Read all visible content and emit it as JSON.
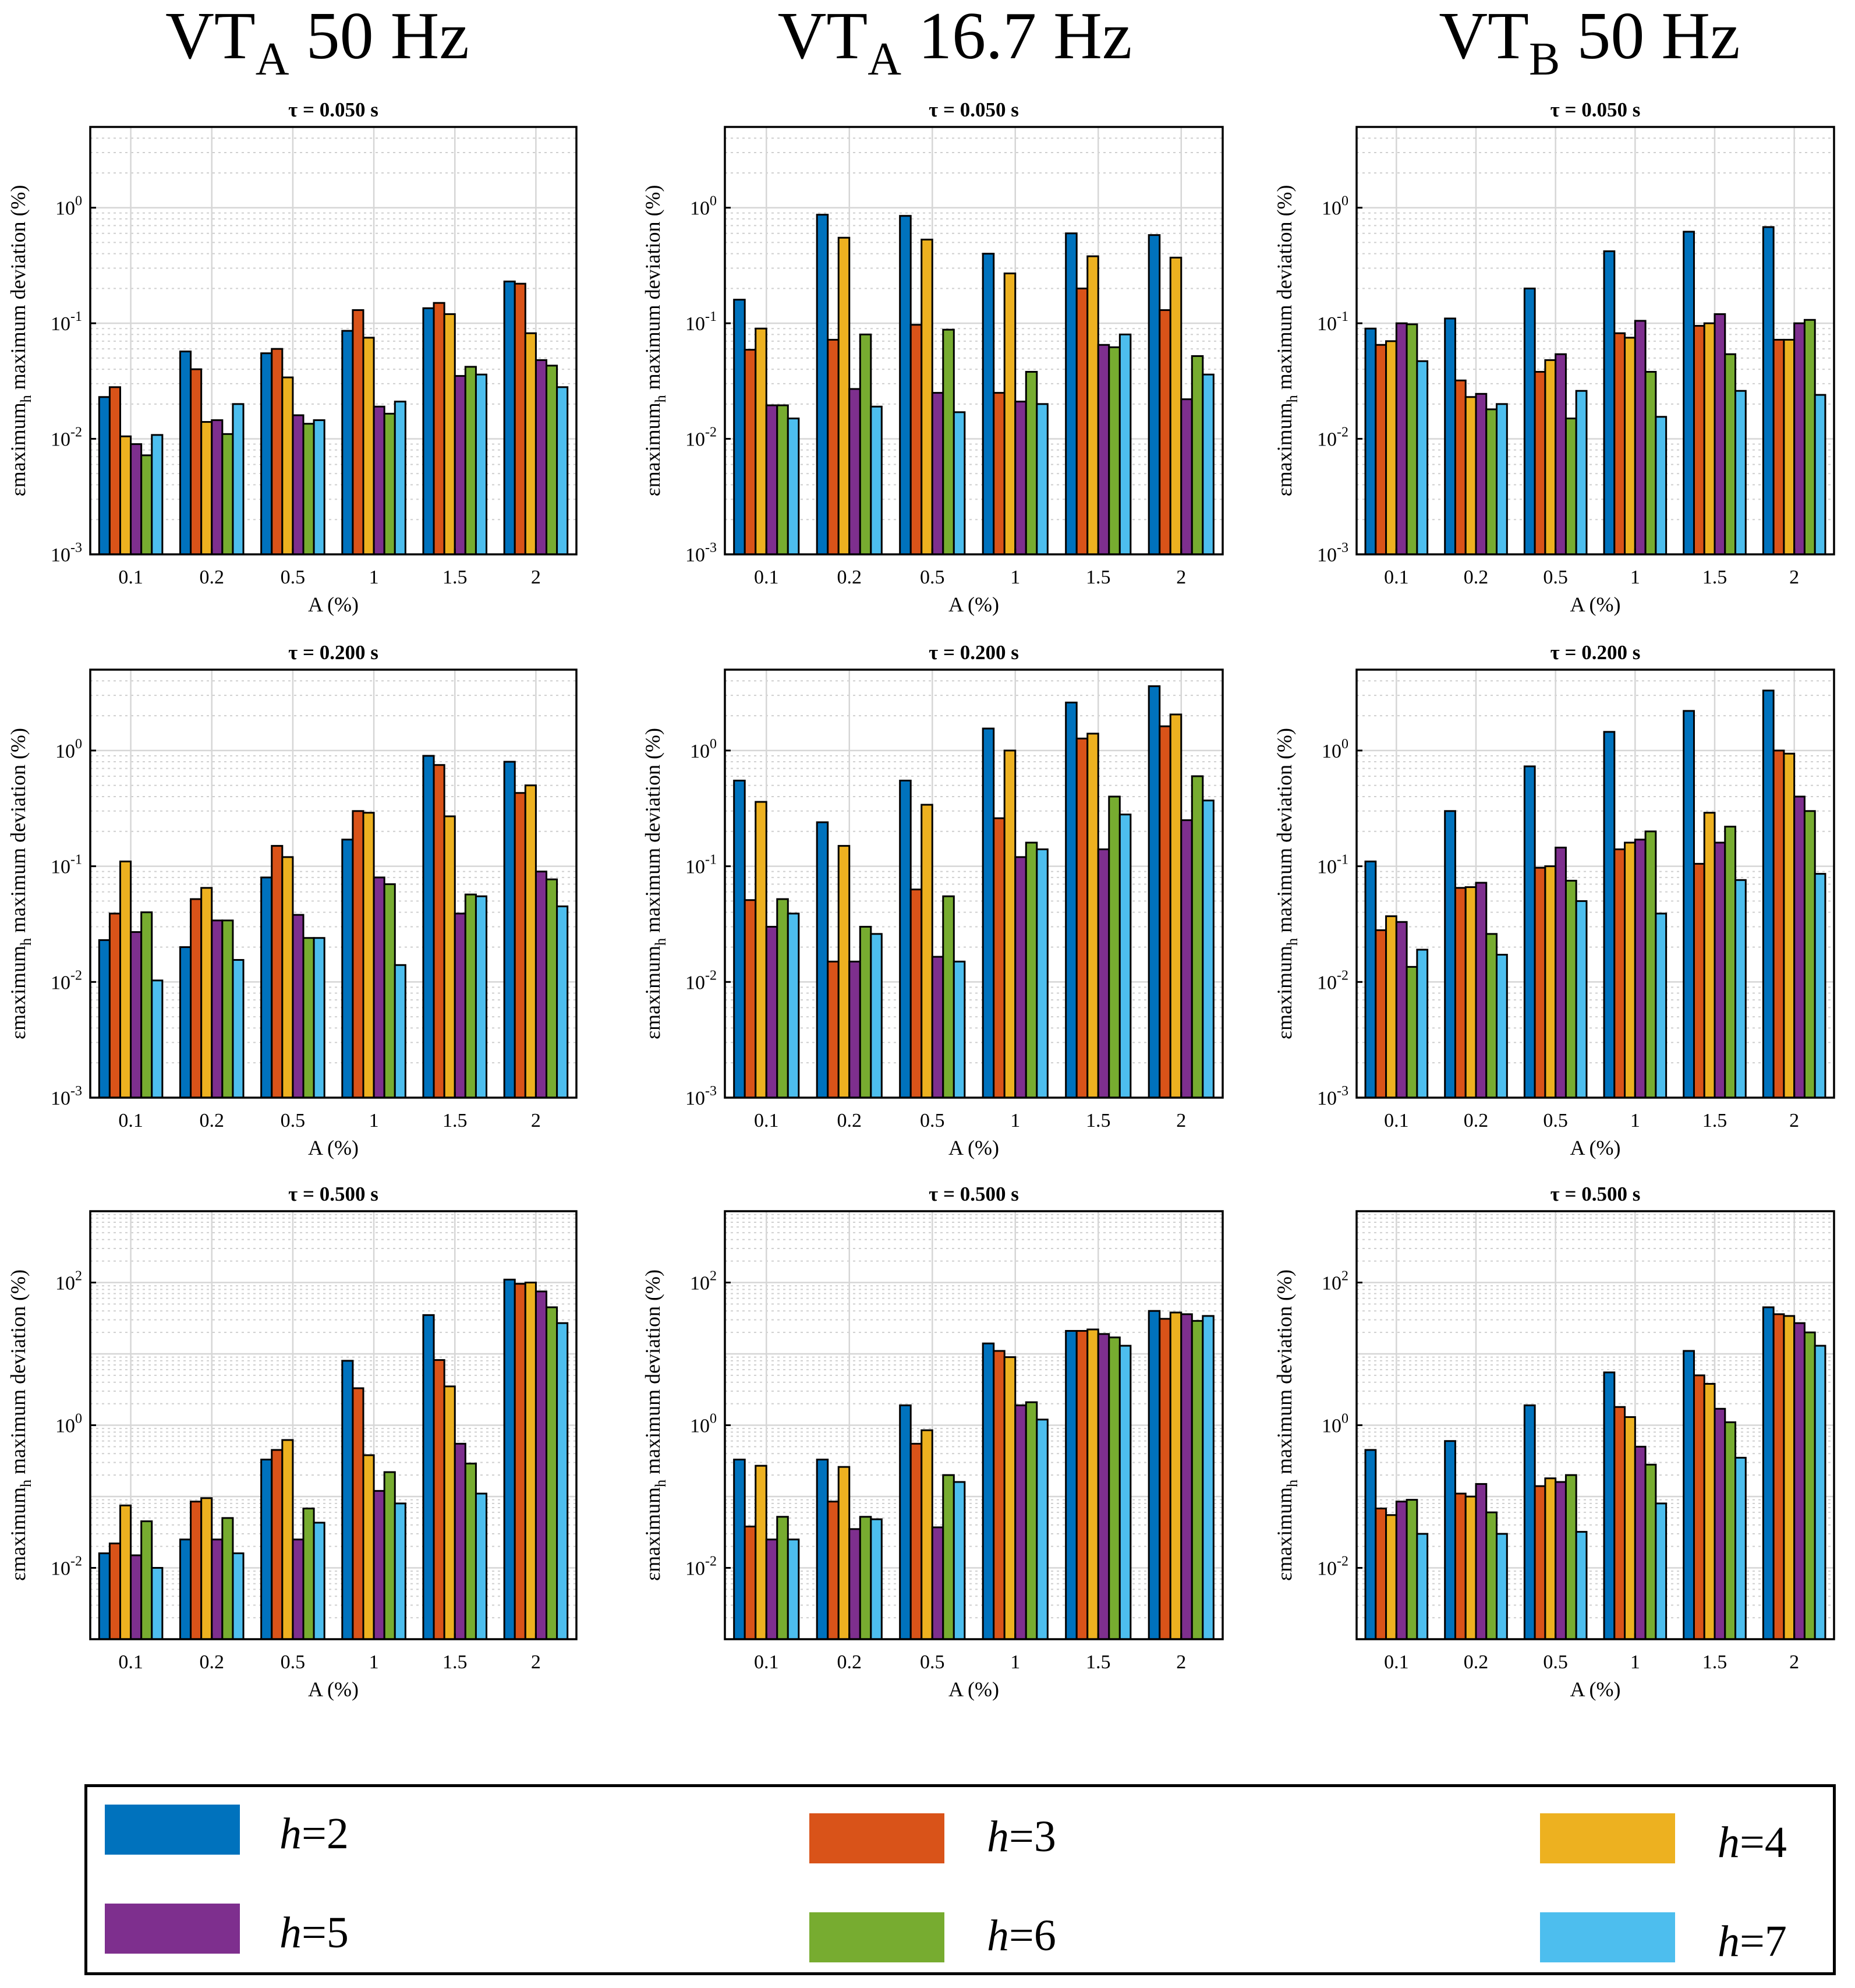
{
  "column_titles": [
    {
      "main": "VT",
      "sub": "A",
      "rest": " 50 Hz"
    },
    {
      "main": "VT",
      "sub": "A",
      "rest": " 16.7 Hz"
    },
    {
      "main": "VT",
      "sub": "B",
      "rest": " 50 Hz"
    }
  ],
  "legend": {
    "items": [
      {
        "prefix": "h",
        "suffix": "=2",
        "color": "#0072BD"
      },
      {
        "prefix": "h",
        "suffix": "=3",
        "color": "#D95319"
      },
      {
        "prefix": "h",
        "suffix": "=4",
        "color": "#EDB120"
      },
      {
        "prefix": "h",
        "suffix": "=5",
        "color": "#7E2F8E"
      },
      {
        "prefix": "h",
        "suffix": "=6",
        "color": "#77AC30"
      },
      {
        "prefix": "h",
        "suffix": "=7",
        "color": "#4DBEEE"
      }
    ]
  },
  "chart_data": [
    {
      "type": "bar",
      "column": "VTA 50 Hz",
      "title": "τ = 0.050 s",
      "xlabel": "A (%)",
      "ylabel": "εh maximum deviation (%)",
      "yscale": "log",
      "ylim": [
        0.001,
        5
      ],
      "yticks": [
        {
          "e": "-3"
        },
        {
          "e": "-2"
        },
        {
          "e": "-1"
        },
        {
          "e": "0"
        }
      ],
      "categories": [
        "0.1",
        "0.2",
        "0.5",
        "1",
        "1.5",
        "2"
      ],
      "series": [
        {
          "name": "h=2",
          "values": [
            0.023,
            0.057,
            0.055,
            0.086,
            0.135,
            0.23
          ]
        },
        {
          "name": "h=3",
          "values": [
            0.028,
            0.04,
            0.06,
            0.13,
            0.15,
            0.22
          ]
        },
        {
          "name": "h=4",
          "values": [
            0.0105,
            0.014,
            0.034,
            0.075,
            0.12,
            0.082
          ]
        },
        {
          "name": "h=5",
          "values": [
            0.009,
            0.0145,
            0.016,
            0.019,
            0.035,
            0.048
          ]
        },
        {
          "name": "h=6",
          "values": [
            0.0072,
            0.011,
            0.0135,
            0.0165,
            0.042,
            0.043
          ]
        },
        {
          "name": "h=7",
          "values": [
            0.0108,
            0.02,
            0.0145,
            0.021,
            0.036,
            0.028
          ]
        }
      ]
    },
    {
      "type": "bar",
      "column": "VTA 16.7 Hz",
      "title": "τ = 0.050 s",
      "xlabel": "A (%)",
      "ylabel": "εh maximum deviation (%)",
      "yscale": "log",
      "ylim": [
        0.001,
        5
      ],
      "yticks": [
        {
          "e": "-3"
        },
        {
          "e": "-2"
        },
        {
          "e": "-1"
        },
        {
          "e": "0"
        }
      ],
      "categories": [
        "0.1",
        "0.2",
        "0.5",
        "1",
        "1.5",
        "2"
      ],
      "series": [
        {
          "name": "h=2",
          "values": [
            0.16,
            0.87,
            0.85,
            0.4,
            0.6,
            0.58
          ]
        },
        {
          "name": "h=3",
          "values": [
            0.059,
            0.072,
            0.097,
            0.025,
            0.2,
            0.13
          ]
        },
        {
          "name": "h=4",
          "values": [
            0.09,
            0.55,
            0.53,
            0.27,
            0.38,
            0.37
          ]
        },
        {
          "name": "h=5",
          "values": [
            0.0195,
            0.027,
            0.025,
            0.021,
            0.065,
            0.022
          ]
        },
        {
          "name": "h=6",
          "values": [
            0.0195,
            0.08,
            0.088,
            0.038,
            0.062,
            0.052
          ]
        },
        {
          "name": "h=7",
          "values": [
            0.015,
            0.019,
            0.017,
            0.02,
            0.08,
            0.036
          ]
        }
      ]
    },
    {
      "type": "bar",
      "column": "VTB 50 Hz",
      "title": "τ = 0.050 s",
      "xlabel": "A (%)",
      "ylabel": "εh maximum deviation (%)",
      "yscale": "log",
      "ylim": [
        0.001,
        5
      ],
      "yticks": [
        {
          "e": "-3"
        },
        {
          "e": "-2"
        },
        {
          "e": "-1"
        },
        {
          "e": "0"
        }
      ],
      "categories": [
        "0.1",
        "0.2",
        "0.5",
        "1",
        "1.5",
        "2"
      ],
      "series": [
        {
          "name": "h=2",
          "values": [
            0.09,
            0.11,
            0.2,
            0.42,
            0.62,
            0.68
          ]
        },
        {
          "name": "h=3",
          "values": [
            0.065,
            0.032,
            0.038,
            0.082,
            0.095,
            0.072
          ]
        },
        {
          "name": "h=4",
          "values": [
            0.07,
            0.023,
            0.048,
            0.075,
            0.1,
            0.072
          ]
        },
        {
          "name": "h=5",
          "values": [
            0.1,
            0.0245,
            0.054,
            0.105,
            0.12,
            0.1
          ]
        },
        {
          "name": "h=6",
          "values": [
            0.098,
            0.018,
            0.015,
            0.038,
            0.054,
            0.107
          ]
        },
        {
          "name": "h=7",
          "values": [
            0.047,
            0.02,
            0.026,
            0.0155,
            0.026,
            0.024
          ]
        }
      ]
    },
    {
      "type": "bar",
      "column": "VTA 50 Hz",
      "title": "τ = 0.200 s",
      "xlabel": "A (%)",
      "ylabel": "εh maximum deviation (%)",
      "yscale": "log",
      "ylim": [
        0.001,
        5
      ],
      "yticks": [
        {
          "e": "-3"
        },
        {
          "e": "-2"
        },
        {
          "e": "-1"
        },
        {
          "e": "0"
        }
      ],
      "categories": [
        "0.1",
        "0.2",
        "0.5",
        "1",
        "1.5",
        "2"
      ],
      "series": [
        {
          "name": "h=2",
          "values": [
            0.023,
            0.02,
            0.08,
            0.17,
            0.9,
            0.8
          ]
        },
        {
          "name": "h=3",
          "values": [
            0.039,
            0.052,
            0.15,
            0.3,
            0.75,
            0.43
          ]
        },
        {
          "name": "h=4",
          "values": [
            0.11,
            0.065,
            0.12,
            0.29,
            0.27,
            0.5
          ]
        },
        {
          "name": "h=5",
          "values": [
            0.027,
            0.034,
            0.038,
            0.08,
            0.039,
            0.09
          ]
        },
        {
          "name": "h=6",
          "values": [
            0.04,
            0.034,
            0.024,
            0.07,
            0.057,
            0.077
          ]
        },
        {
          "name": "h=7",
          "values": [
            0.0103,
            0.0155,
            0.024,
            0.014,
            0.055,
            0.045
          ]
        }
      ]
    },
    {
      "type": "bar",
      "column": "VTA 16.7 Hz",
      "title": "τ = 0.200 s",
      "xlabel": "A (%)",
      "ylabel": "εh maximum deviation (%)",
      "yscale": "log",
      "ylim": [
        0.001,
        5
      ],
      "yticks": [
        {
          "e": "-3"
        },
        {
          "e": "-2"
        },
        {
          "e": "-1"
        },
        {
          "e": "0"
        }
      ],
      "categories": [
        "0.1",
        "0.2",
        "0.5",
        "1",
        "1.5",
        "2"
      ],
      "series": [
        {
          "name": "h=2",
          "values": [
            0.55,
            0.24,
            0.55,
            1.55,
            2.6,
            3.6
          ]
        },
        {
          "name": "h=3",
          "values": [
            0.051,
            0.015,
            0.063,
            0.26,
            1.27,
            1.62
          ]
        },
        {
          "name": "h=4",
          "values": [
            0.36,
            0.15,
            0.34,
            1.0,
            1.4,
            2.05
          ]
        },
        {
          "name": "h=5",
          "values": [
            0.03,
            0.015,
            0.0165,
            0.12,
            0.14,
            0.25
          ]
        },
        {
          "name": "h=6",
          "values": [
            0.052,
            0.03,
            0.055,
            0.16,
            0.4,
            0.6
          ]
        },
        {
          "name": "h=7",
          "values": [
            0.039,
            0.026,
            0.015,
            0.14,
            0.28,
            0.37
          ]
        }
      ]
    },
    {
      "type": "bar",
      "column": "VTB 50 Hz",
      "title": "τ = 0.200 s",
      "xlabel": "A (%)",
      "ylabel": "εh maximum deviation (%)",
      "yscale": "log",
      "ylim": [
        0.001,
        5
      ],
      "yticks": [
        {
          "e": "-3"
        },
        {
          "e": "-2"
        },
        {
          "e": "-1"
        },
        {
          "e": "0"
        }
      ],
      "categories": [
        "0.1",
        "0.2",
        "0.5",
        "1",
        "1.5",
        "2"
      ],
      "series": [
        {
          "name": "h=2",
          "values": [
            0.11,
            0.3,
            0.73,
            1.45,
            2.2,
            3.3
          ]
        },
        {
          "name": "h=3",
          "values": [
            0.028,
            0.065,
            0.097,
            0.14,
            0.105,
            1.0
          ]
        },
        {
          "name": "h=4",
          "values": [
            0.037,
            0.066,
            0.1,
            0.16,
            0.29,
            0.94
          ]
        },
        {
          "name": "h=5",
          "values": [
            0.033,
            0.072,
            0.145,
            0.17,
            0.16,
            0.4
          ]
        },
        {
          "name": "h=6",
          "values": [
            0.0135,
            0.026,
            0.075,
            0.2,
            0.22,
            0.3
          ]
        },
        {
          "name": "h=7",
          "values": [
            0.019,
            0.0172,
            0.05,
            0.039,
            0.076,
            0.086
          ]
        }
      ]
    },
    {
      "type": "bar",
      "column": "VTA 50 Hz",
      "title": "τ = 0.500 s",
      "xlabel": "A (%)",
      "ylabel": "εh maximum deviation (%)",
      "yscale": "log",
      "ylim": [
        0.001,
        1000
      ],
      "yticks": [
        {
          "e": "-2"
        },
        {
          "e": "0"
        },
        {
          "e": "2"
        }
      ],
      "categories": [
        "0.1",
        "0.2",
        "0.5",
        "1",
        "1.5",
        "2"
      ],
      "series": [
        {
          "name": "h=2",
          "values": [
            0.016,
            0.025,
            0.33,
            8,
            35,
            110
          ]
        },
        {
          "name": "h=3",
          "values": [
            0.022,
            0.085,
            0.45,
            3.3,
            8.2,
            96
          ]
        },
        {
          "name": "h=4",
          "values": [
            0.075,
            0.095,
            0.62,
            0.38,
            3.5,
            100
          ]
        },
        {
          "name": "h=5",
          "values": [
            0.015,
            0.025,
            0.025,
            0.12,
            0.55,
            75
          ]
        },
        {
          "name": "h=6",
          "values": [
            0.045,
            0.05,
            0.068,
            0.22,
            0.29,
            45
          ]
        },
        {
          "name": "h=7",
          "values": [
            0.01,
            0.016,
            0.043,
            0.08,
            0.11,
            27
          ]
        }
      ]
    },
    {
      "type": "bar",
      "column": "VTA 16.7 Hz",
      "title": "τ = 0.500 s",
      "xlabel": "A (%)",
      "ylabel": "εh maximum deviation (%)",
      "yscale": "log",
      "ylim": [
        0.001,
        1000
      ],
      "yticks": [
        {
          "e": "-2"
        },
        {
          "e": "0"
        },
        {
          "e": "2"
        }
      ],
      "categories": [
        "0.1",
        "0.2",
        "0.5",
        "1",
        "1.5",
        "2"
      ],
      "series": [
        {
          "name": "h=2",
          "values": [
            0.33,
            0.33,
            1.9,
            14,
            21,
            40
          ]
        },
        {
          "name": "h=3",
          "values": [
            0.038,
            0.085,
            0.55,
            11,
            21,
            31
          ]
        },
        {
          "name": "h=4",
          "values": [
            0.27,
            0.26,
            0.85,
            9,
            22,
            38
          ]
        },
        {
          "name": "h=5",
          "values": [
            0.025,
            0.035,
            0.037,
            1.9,
            19,
            36
          ]
        },
        {
          "name": "h=6",
          "values": [
            0.052,
            0.052,
            0.2,
            2.1,
            17,
            29
          ]
        },
        {
          "name": "h=7",
          "values": [
            0.025,
            0.048,
            0.16,
            1.2,
            13,
            34
          ]
        }
      ]
    },
    {
      "type": "bar",
      "column": "VTB 50 Hz",
      "title": "τ = 0.500 s",
      "xlabel": "A (%)",
      "ylabel": "εh maximum deviation (%)",
      "yscale": "log",
      "ylim": [
        0.001,
        1000
      ],
      "yticks": [
        {
          "e": "-2"
        },
        {
          "e": "0"
        },
        {
          "e": "2"
        }
      ],
      "categories": [
        "0.1",
        "0.2",
        "0.5",
        "1",
        "1.5",
        "2"
      ],
      "series": [
        {
          "name": "h=2",
          "values": [
            0.45,
            0.6,
            1.9,
            5.5,
            11,
            45
          ]
        },
        {
          "name": "h=3",
          "values": [
            0.068,
            0.11,
            0.14,
            1.8,
            5,
            36
          ]
        },
        {
          "name": "h=4",
          "values": [
            0.055,
            0.1,
            0.18,
            1.3,
            3.8,
            34
          ]
        },
        {
          "name": "h=5",
          "values": [
            0.085,
            0.15,
            0.16,
            0.5,
            1.7,
            27
          ]
        },
        {
          "name": "h=6",
          "values": [
            0.09,
            0.06,
            0.2,
            0.28,
            1.1,
            20
          ]
        },
        {
          "name": "h=7",
          "values": [
            0.03,
            0.03,
            0.032,
            0.08,
            0.35,
            13
          ]
        }
      ]
    }
  ]
}
